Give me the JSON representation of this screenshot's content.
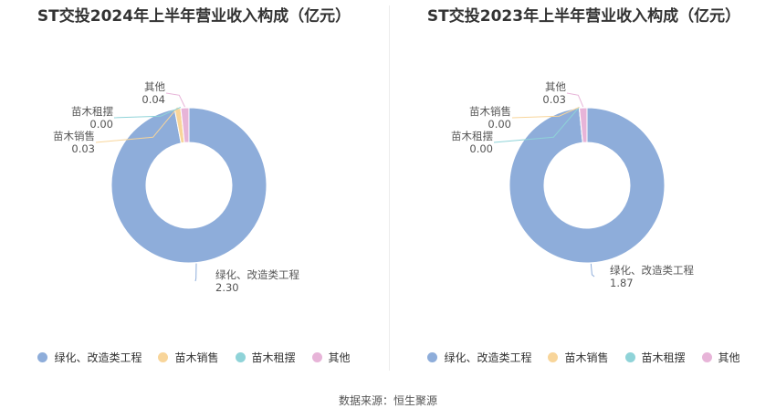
{
  "chart_data": [
    {
      "type": "pie",
      "title": "ST交投2024年上半年营业收入构成（亿元）",
      "categories": [
        "绿化、改造类工程",
        "苗木销售",
        "苗木租摆",
        "其他"
      ],
      "values": [
        2.3,
        0.03,
        0.0,
        0.04
      ],
      "value_labels": [
        "2.30",
        "0.03",
        "0.00",
        "0.04"
      ],
      "colors": [
        "#8eadda",
        "#f8d59a",
        "#8fd3d8",
        "#e7b4d8"
      ],
      "legend": "bottom"
    },
    {
      "type": "pie",
      "title": "ST交投2023年上半年营业收入构成（亿元）",
      "categories": [
        "绿化、改造类工程",
        "苗木销售",
        "苗木租摆",
        "其他"
      ],
      "values": [
        1.87,
        0.0,
        0.0,
        0.03
      ],
      "value_labels": [
        "1.87",
        "0.00",
        "0.00",
        "0.03"
      ],
      "colors": [
        "#8eadda",
        "#f8d59a",
        "#8fd3d8",
        "#e7b4d8"
      ],
      "legend": "bottom"
    }
  ],
  "footer": {
    "source": "数据来源：恒生聚源"
  }
}
